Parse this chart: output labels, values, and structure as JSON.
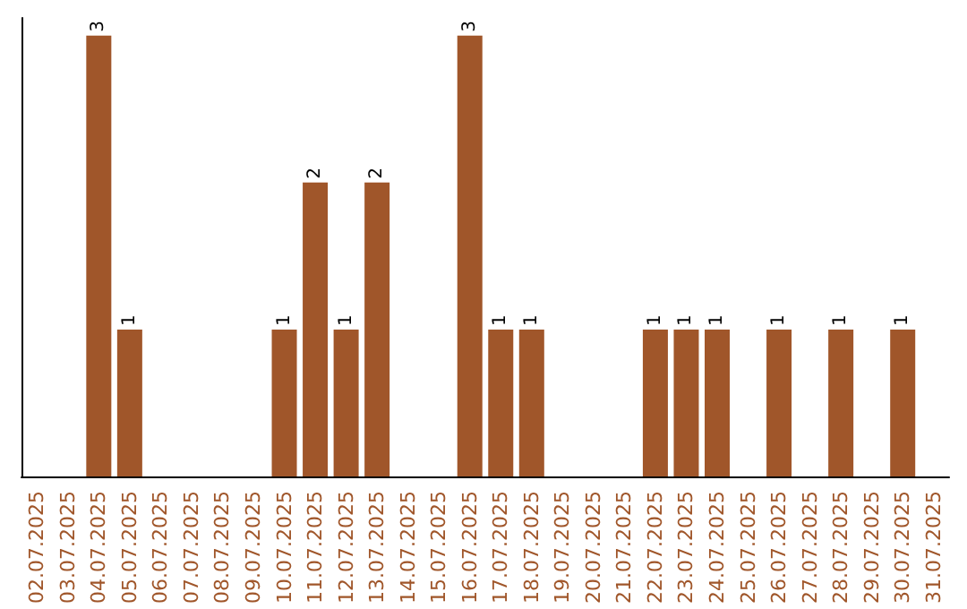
{
  "chart_data": {
    "type": "bar",
    "categories": [
      "02.07.2025",
      "03.07.2025",
      "04.07.2025",
      "05.07.2025",
      "06.07.2025",
      "07.07.2025",
      "08.07.2025",
      "09.07.2025",
      "10.07.2025",
      "11.07.2025",
      "12.07.2025",
      "13.07.2025",
      "14.07.2025",
      "15.07.2025",
      "16.07.2025",
      "17.07.2025",
      "18.07.2025",
      "19.07.2025",
      "20.07.2025",
      "21.07.2025",
      "22.07.2025",
      "23.07.2025",
      "24.07.2025",
      "25.07.2025",
      "26.07.2025",
      "27.07.2025",
      "28.07.2025",
      "29.07.2025",
      "30.07.2025",
      "31.07.2025"
    ],
    "values": [
      0,
      0,
      3,
      1,
      0,
      0,
      0,
      0,
      1,
      2,
      1,
      2,
      0,
      0,
      3,
      1,
      1,
      0,
      0,
      0,
      1,
      1,
      1,
      0,
      1,
      0,
      1,
      0,
      1,
      0
    ],
    "value_labels": [
      null,
      null,
      "3",
      "1",
      null,
      null,
      null,
      null,
      "1",
      "2",
      "1",
      "2",
      null,
      null,
      "3",
      "1",
      "1",
      null,
      null,
      null,
      "1",
      "1",
      "1",
      null,
      "1",
      null,
      "1",
      null,
      "1",
      null
    ],
    "color": "#a0562a",
    "tick_labels": "x"
  }
}
